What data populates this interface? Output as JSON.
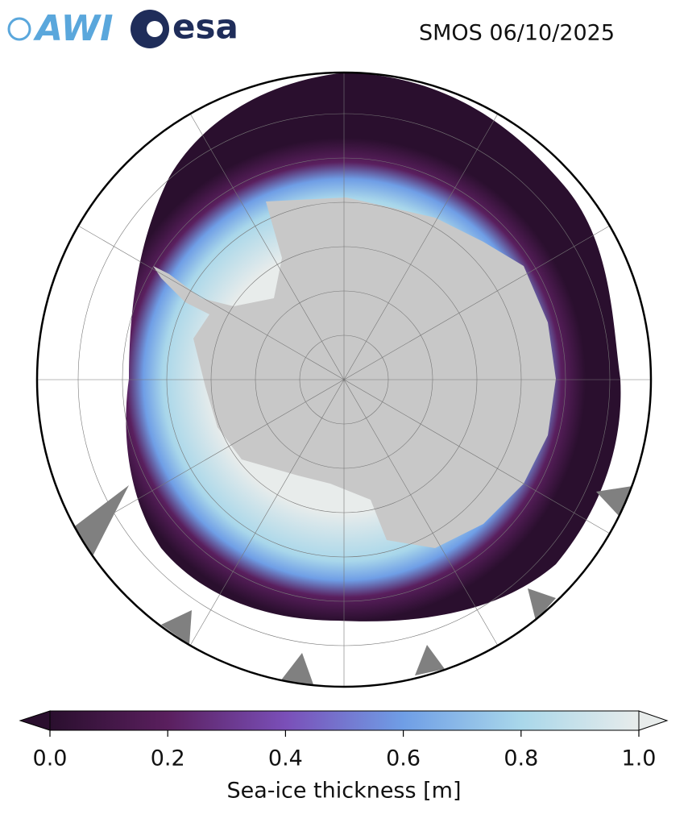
{
  "logos": [
    "AWI",
    "esa"
  ],
  "chart_data": {
    "type": "colormap",
    "title": "SMOS 06/10/2025",
    "colorbar_label": "Sea-ice thickness [m]",
    "clim": [
      0,
      1
    ],
    "ticks": [
      {
        "value": 0,
        "label": "0.0"
      },
      0.2,
      0.4,
      0.6,
      0.8,
      {
        "value": 1,
        "label": "1.0"
      }
    ],
    "colors": [
      "#2a0f2e",
      "#5a1f5e",
      "#7a4fb8",
      "#6f9ee6",
      "#a9d7ea",
      "#e8eceb"
    ],
    "extend": "both"
  }
}
